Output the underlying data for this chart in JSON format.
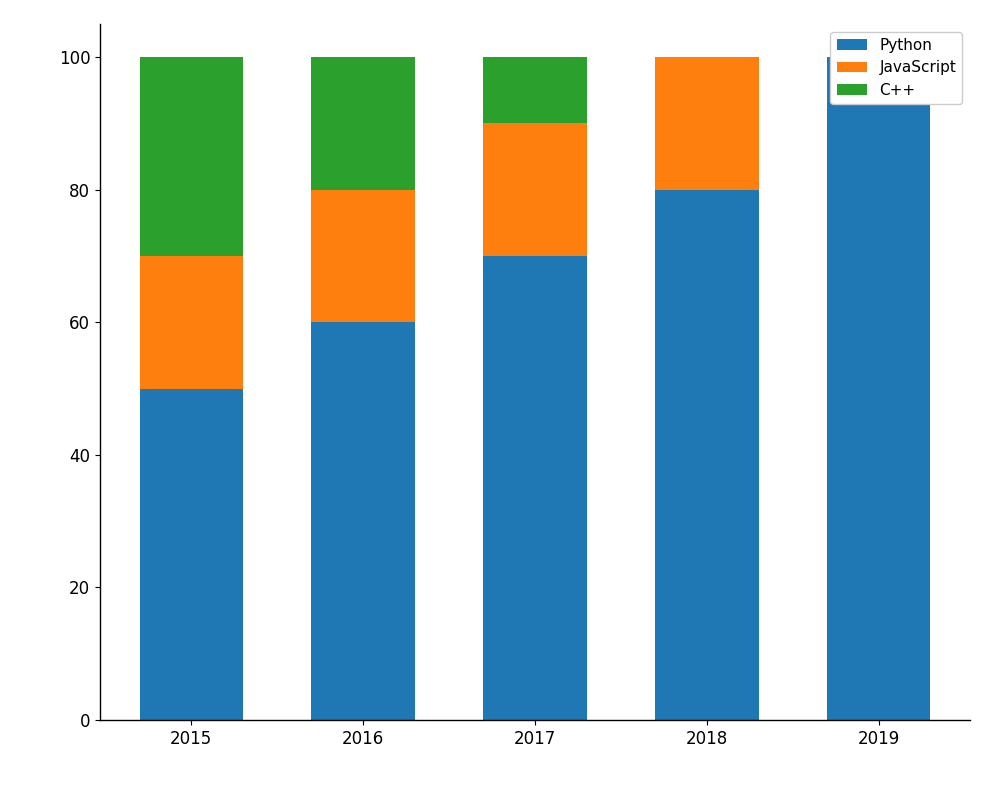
{
  "years": [
    2015,
    2016,
    2017,
    2018,
    2019
  ],
  "python": [
    50,
    60,
    70,
    80,
    100
  ],
  "javascript": [
    20,
    20,
    20,
    20,
    0
  ],
  "cpp": [
    30,
    20,
    10,
    0,
    0
  ],
  "colors": {
    "python": "#1f77b4",
    "javascript": "#ff7f0e",
    "cpp": "#2ca02c"
  },
  "legend_labels": [
    "Python",
    "JavaScript",
    "C++"
  ],
  "ylim": [
    0,
    105
  ],
  "yticks": [
    0,
    20,
    40,
    60,
    80,
    100
  ],
  "bar_width": 0.6,
  "figsize": [
    10,
    8
  ],
  "dpi": 100
}
